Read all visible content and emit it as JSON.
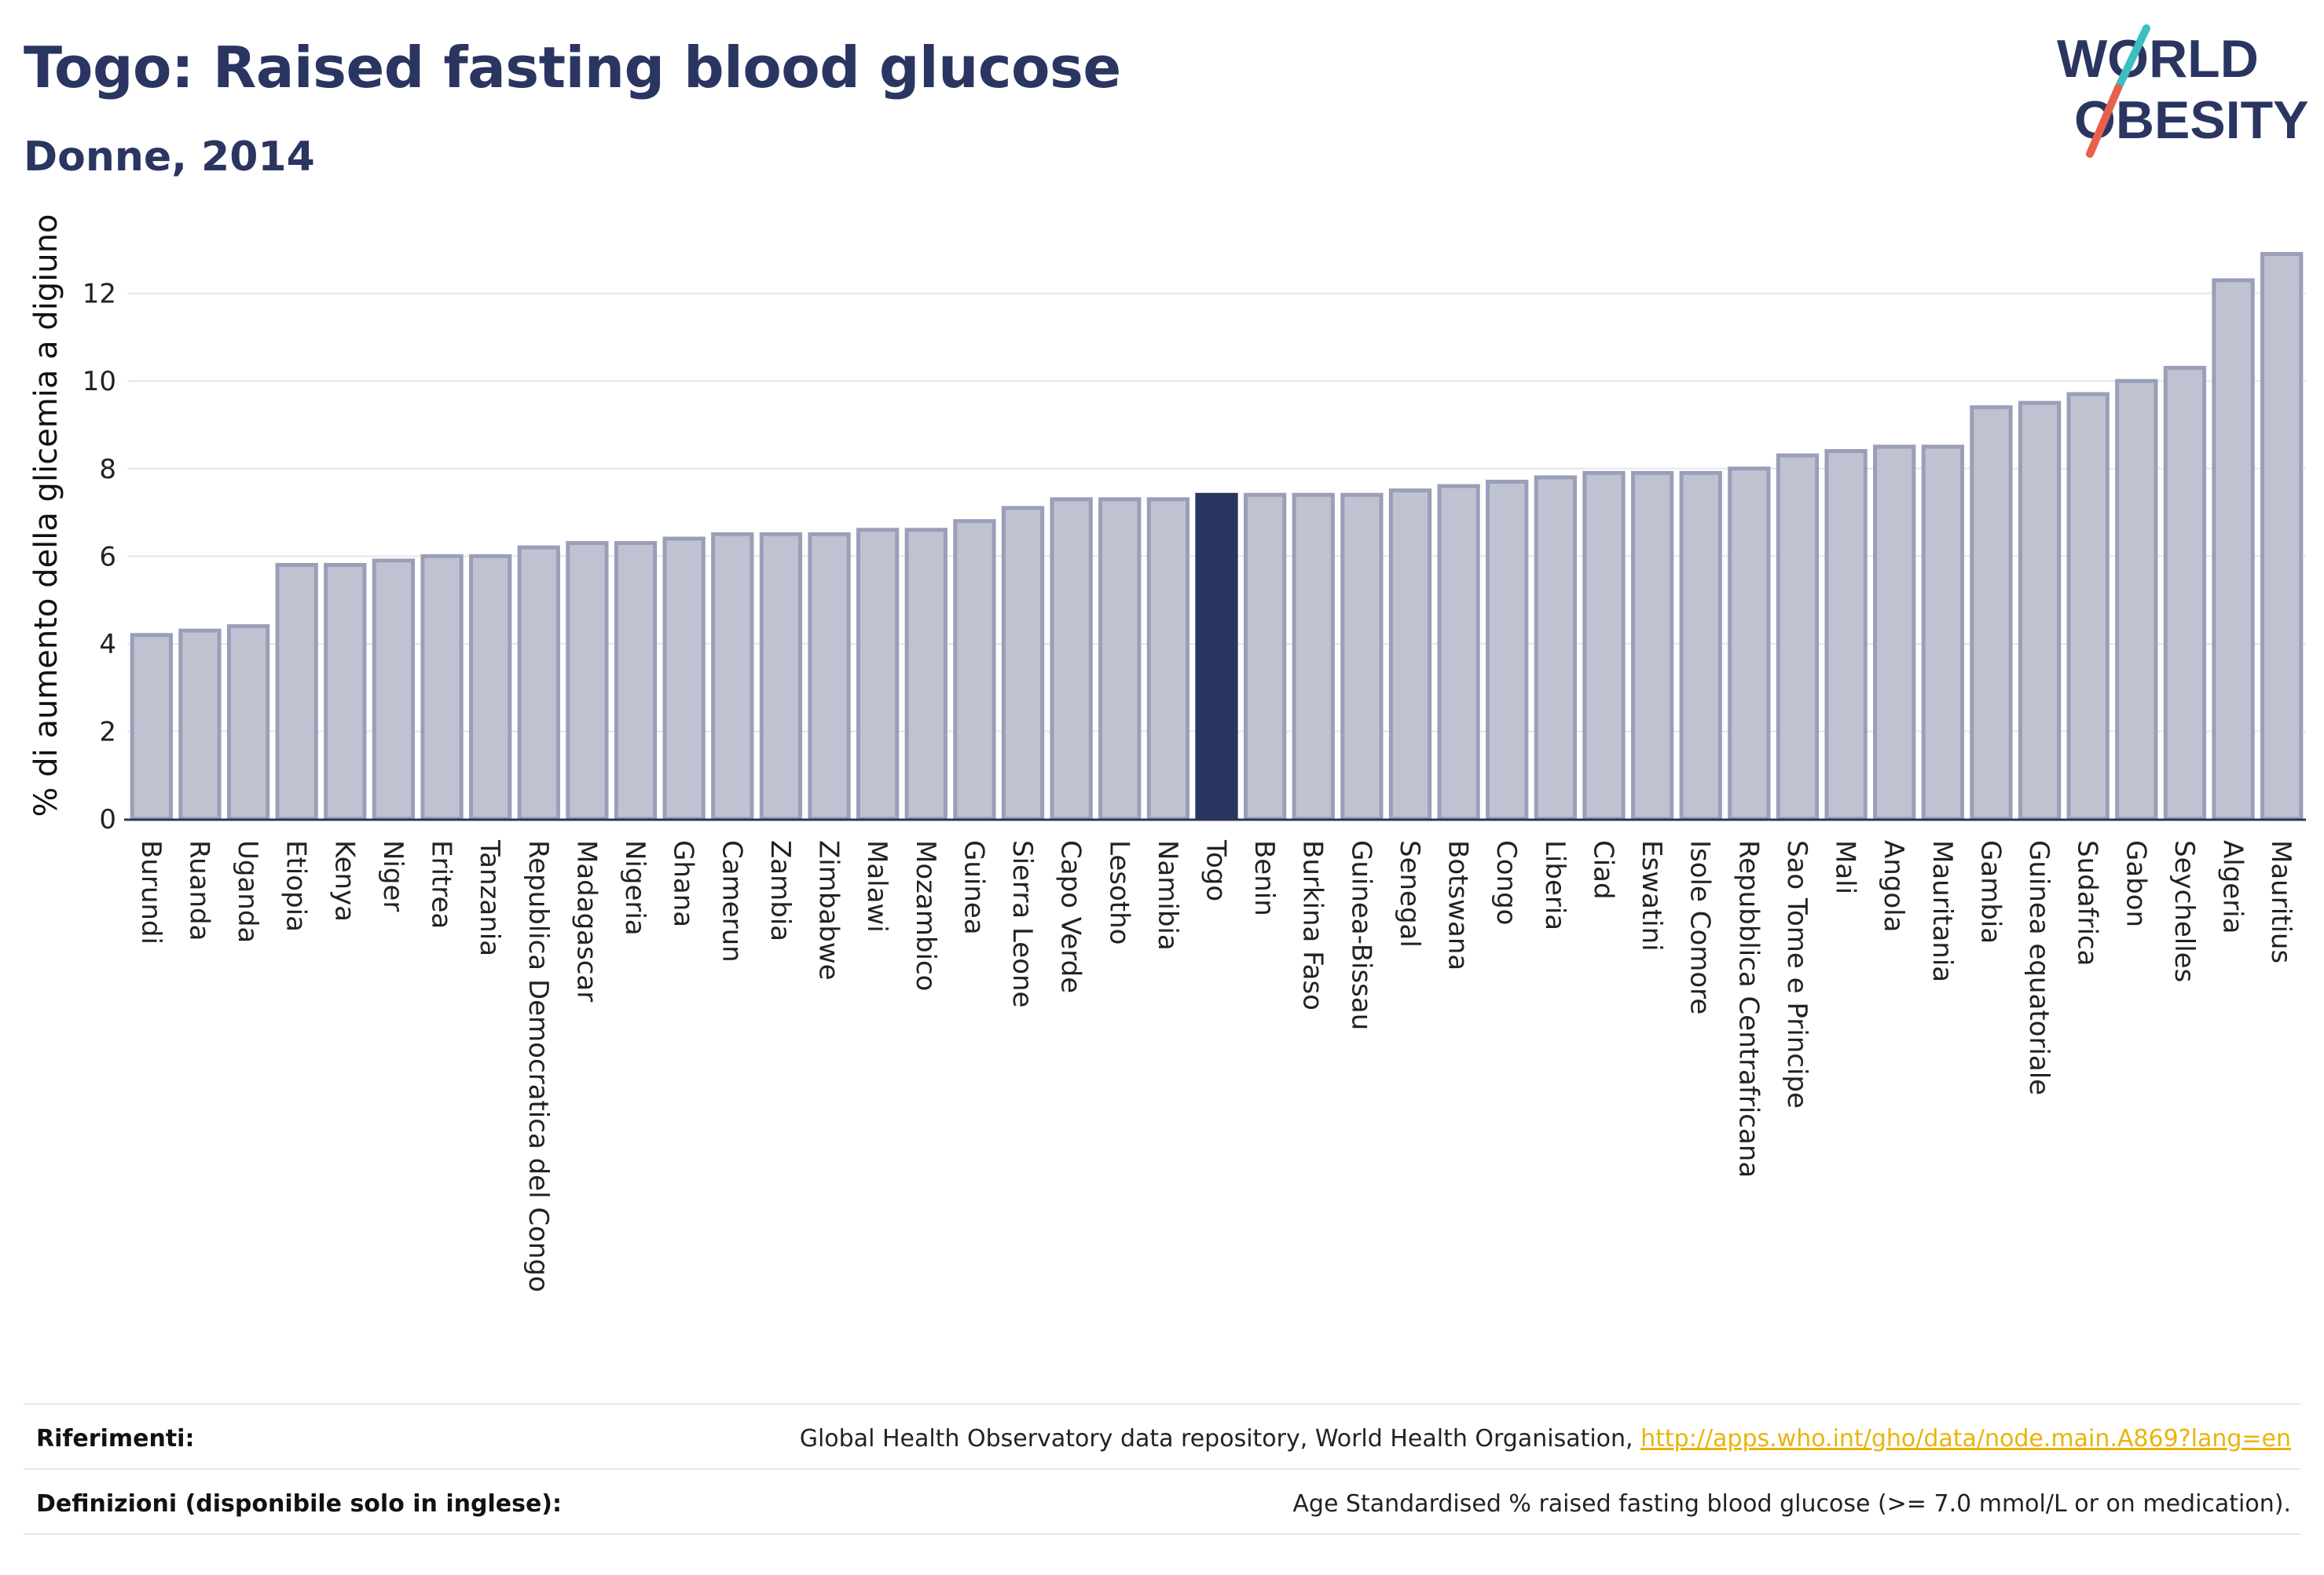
{
  "header": {
    "title": "Togo: Raised fasting blood glucose",
    "subtitle": "Donne, 2014"
  },
  "logo": {
    "line1": "WORLD",
    "line2": "OBESITY",
    "text_color": "#2b3561",
    "slash_teal": "#3bbfbf",
    "slash_red": "#e8604c"
  },
  "colors": {
    "bar": "#bfc2d0",
    "bar_border": "#9a9fb8",
    "highlight": "#2b3561",
    "grid": "#e6e6ea",
    "axis": "#2b3561"
  },
  "chart_data": {
    "type": "bar",
    "ylabel": "% di aumento della glicemia a digiuno",
    "ylim": [
      0,
      13.5
    ],
    "yticks": [
      0,
      2,
      4,
      6,
      8,
      10,
      12
    ],
    "grid": true,
    "highlight": "Togo",
    "categories": [
      "Burundi",
      "Ruanda",
      "Uganda",
      "Etiopia",
      "Kenya",
      "Niger",
      "Eritrea",
      "Tanzania",
      "Republica Democratica del Congo",
      "Madagascar",
      "Nigeria",
      "Ghana",
      "Camerun",
      "Zambia",
      "Zimbabwe",
      "Malawi",
      "Mozambico",
      "Guinea",
      "Sierra Leone",
      "Capo Verde",
      "Lesotho",
      "Namibia",
      "Togo",
      "Benin",
      "Burkina Faso",
      "Guinea-Bissau",
      "Senegal",
      "Botswana",
      "Congo",
      "Liberia",
      "Ciad",
      "Eswatini",
      "Isole Comore",
      "Repubblica Centrafricana",
      "Sao Tome e Principe",
      "Mali",
      "Angola",
      "Mauritania",
      "Gambia",
      "Guinea equatoriale",
      "Sudafrica",
      "Gabon",
      "Seychelles",
      "Algeria",
      "Mauritius"
    ],
    "values": [
      4.2,
      4.3,
      4.4,
      5.8,
      5.8,
      5.9,
      6.0,
      6.0,
      6.2,
      6.3,
      6.3,
      6.4,
      6.5,
      6.5,
      6.5,
      6.6,
      6.6,
      6.8,
      7.1,
      7.3,
      7.3,
      7.3,
      7.4,
      7.4,
      7.4,
      7.4,
      7.5,
      7.6,
      7.7,
      7.8,
      7.9,
      7.9,
      7.9,
      8.0,
      8.3,
      8.4,
      8.5,
      8.5,
      9.4,
      9.5,
      9.7,
      10.0,
      10.3,
      12.3,
      12.9
    ]
  },
  "footer": {
    "references_label": "Riferimenti:",
    "references_text": "Global Health Observatory data repository, World Health Organisation,",
    "references_link": "http://apps.who.int/gho/data/node.main.A869?lang=en",
    "definitions_label": "Definizioni (disponibile solo in inglese):",
    "definitions_text": "Age Standardised % raised fasting blood glucose (>= 7.0 mmol/L or on medication)."
  }
}
